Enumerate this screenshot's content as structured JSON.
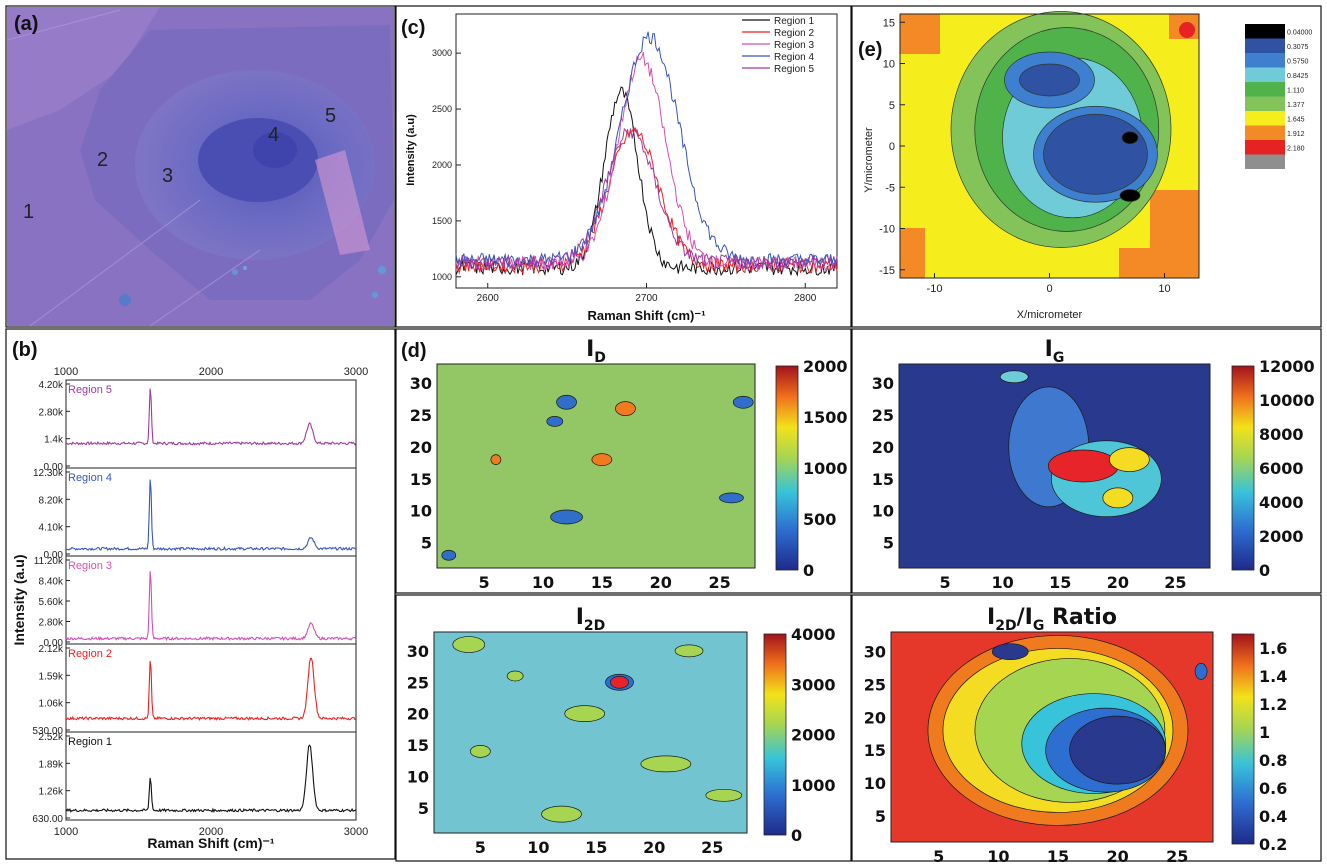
{
  "panels": {
    "a": {
      "label": "(a)",
      "region_numbers": [
        "1",
        "2",
        "3",
        "4",
        "5"
      ]
    },
    "b": {
      "label": "(b)",
      "top_ticks": [
        "1000",
        "2000",
        "3000"
      ]
    },
    "c": {
      "label": "(c)"
    },
    "d": {
      "label": "(d)"
    },
    "e": {
      "label": "(e)"
    }
  },
  "chart_data": [
    {
      "panel": "b",
      "type": "line",
      "xlabel": "Raman Shift (cm)⁻¹",
      "ylabel": "Intensity (a.u)",
      "xlim": [
        1000,
        3000
      ],
      "x_ticks": [
        "1000",
        "2000",
        "3000"
      ],
      "stacked_subplots": [
        {
          "name": "Region 5",
          "color": "#a03aa0",
          "y_ticks": [
            "0.00",
            "1.4k",
            "2.80k",
            "4.20k"
          ],
          "ylim": [
            0,
            5000
          ],
          "baseline": 1400,
          "peaks": [
            {
              "x": 1582,
              "y": 4600
            },
            {
              "x": 2680,
              "y": 2500
            }
          ]
        },
        {
          "name": "Region 4",
          "color": "#3557bd",
          "y_ticks": [
            "0.00",
            "4.10k",
            "8.20k",
            "12.30k"
          ],
          "ylim": [
            0,
            14500
          ],
          "baseline": 1200,
          "peaks": [
            {
              "x": 1582,
              "y": 13000
            },
            {
              "x": 2690,
              "y": 3000
            }
          ]
        },
        {
          "name": "Region 3",
          "color": "#d54fb4",
          "y_ticks": [
            "0.00",
            "2.80k",
            "5.60k",
            "8.40k",
            "11.20k"
          ],
          "ylim": [
            0,
            11200
          ],
          "baseline": 700,
          "peaks": [
            {
              "x": 1582,
              "y": 9600
            },
            {
              "x": 2690,
              "y": 2600
            }
          ]
        },
        {
          "name": "Region 2",
          "color": "#ee2020",
          "y_ticks": [
            "530.00",
            "1.06k",
            "1.59k",
            "2.12k"
          ],
          "ylim": [
            530,
            2600
          ],
          "baseline": 850,
          "peaks": [
            {
              "x": 1582,
              "y": 2250
            },
            {
              "x": 2690,
              "y": 2300
            }
          ]
        },
        {
          "name": "Region 1",
          "color": "#111111",
          "y_ticks": [
            "630.00",
            "1.26k",
            "1.89k",
            "2.52k"
          ],
          "ylim": [
            630,
            3100
          ],
          "baseline": 900,
          "peaks": [
            {
              "x": 1582,
              "y": 1850
            },
            {
              "x": 2680,
              "y": 2750
            }
          ]
        }
      ]
    },
    {
      "panel": "c",
      "type": "line",
      "xlabel": "Raman Shift (cm)⁻¹",
      "ylabel": "Intensity (a.u)",
      "xlim": [
        2580,
        2820
      ],
      "ylim": [
        900,
        3350
      ],
      "x_ticks": [
        2600,
        2700,
        2800
      ],
      "y_ticks": [
        1000,
        1500,
        2000,
        2500,
        3000
      ],
      "series": [
        {
          "name": "Region 1",
          "color": "#111111",
          "center": 2684,
          "peak": 2650,
          "base": 1080,
          "width": 15
        },
        {
          "name": "Region 2",
          "color": "#ee2020",
          "center": 2692,
          "peak": 2300,
          "base": 1100,
          "width": 22
        },
        {
          "name": "Region 3",
          "color": "#d54fb4",
          "center": 2697,
          "peak": 2950,
          "base": 1120,
          "width": 21
        },
        {
          "name": "Region 4",
          "color": "#3557bd",
          "center": 2702,
          "peak": 3150,
          "base": 1150,
          "width": 26
        },
        {
          "name": "Region 5",
          "color": "#a03aa0",
          "center": 2690,
          "peak": 2300,
          "base": 1130,
          "width": 22
        }
      ]
    },
    {
      "panel": "e",
      "type": "heatmap",
      "xlabel": "X/micrometer",
      "ylabel": "Y/micrometer",
      "xlim": [
        -13,
        13
      ],
      "ylim": [
        -16,
        16
      ],
      "x_ticks": [
        -10,
        0,
        10
      ],
      "y_ticks": [
        -15,
        -10,
        -5,
        0,
        5,
        10,
        15
      ],
      "legend_levels": [
        "0.04000",
        "0.3075",
        "0.5750",
        "0.8425",
        "1.110",
        "1.377",
        "1.645",
        "1.912",
        "2.180"
      ],
      "legend_colors": [
        "#000000",
        "#2f52a3",
        "#3f7fcf",
        "#6fcbd8",
        "#4fb24a",
        "#83c35a",
        "#f6ee1c",
        "#f38a25",
        "#e62222",
        "#8f8f8f"
      ]
    },
    {
      "panel": "d",
      "type": "heatmap",
      "title": "I",
      "title_sub": "D",
      "xlim": [
        1,
        28
      ],
      "ylim": [
        1,
        33
      ],
      "x_ticks": [
        5,
        10,
        15,
        20,
        25
      ],
      "y_ticks": [
        5,
        10,
        15,
        20,
        25,
        30
      ],
      "colorbar_ticks": [
        "0",
        "500",
        "1000",
        "1500",
        "2000"
      ],
      "crange": [
        0,
        2000
      ]
    },
    {
      "panel": "IG",
      "type": "heatmap",
      "title": "I",
      "title_sub": "G",
      "xlim": [
        1,
        28
      ],
      "ylim": [
        1,
        33
      ],
      "x_ticks": [
        5,
        10,
        15,
        20,
        25
      ],
      "y_ticks": [
        5,
        10,
        15,
        20,
        25,
        30
      ],
      "colorbar_ticks": [
        "0",
        "2000",
        "4000",
        "6000",
        "8000",
        "10000",
        "12000"
      ],
      "crange": [
        0,
        12000
      ]
    },
    {
      "panel": "I2D",
      "type": "heatmap",
      "title": "I",
      "title_sub": "2D",
      "xlim": [
        1,
        28
      ],
      "ylim": [
        1,
        33
      ],
      "x_ticks": [
        5,
        10,
        15,
        20,
        25
      ],
      "y_ticks": [
        5,
        10,
        15,
        20,
        25,
        30
      ],
      "colorbar_ticks": [
        "0",
        "1000",
        "2000",
        "3000",
        "4000"
      ],
      "crange": [
        0,
        4000
      ]
    },
    {
      "panel": "ratio",
      "type": "heatmap",
      "title": "I",
      "title_sub": "2D",
      "title_mid": "/I",
      "title_sub2": "G",
      "title_tail": " Ratio",
      "xlim": [
        1,
        28
      ],
      "ylim": [
        1,
        33
      ],
      "x_ticks": [
        5,
        10,
        15,
        20,
        25
      ],
      "y_ticks": [
        5,
        10,
        15,
        20,
        25,
        30
      ],
      "colorbar_ticks": [
        "0.2",
        "0.4",
        "0.6",
        "0.8",
        "1",
        "1.2",
        "1.4",
        "1.6"
      ],
      "crange": [
        0.2,
        1.7
      ]
    }
  ]
}
